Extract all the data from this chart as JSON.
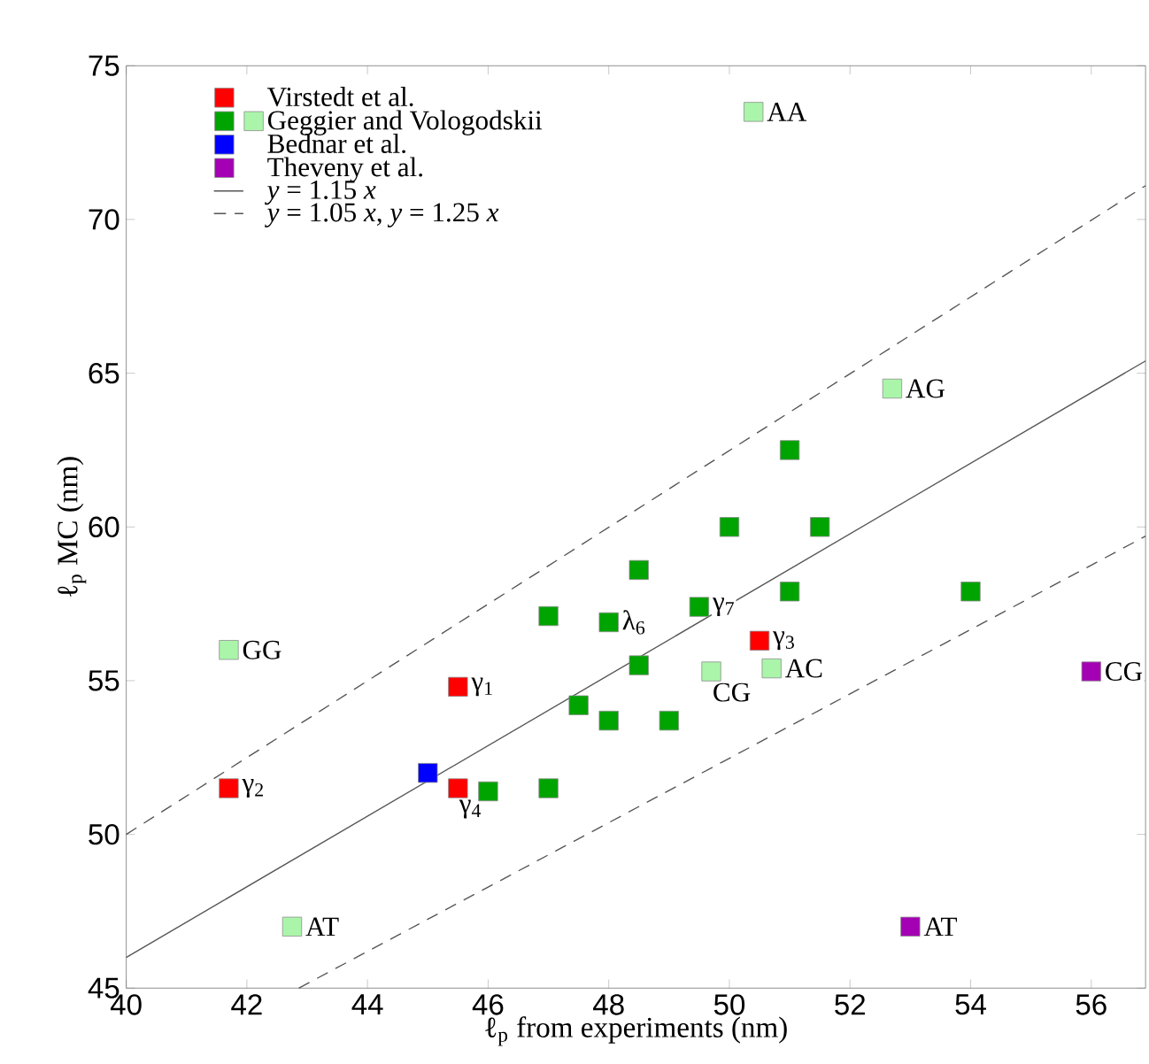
{
  "chart_data": {
    "type": "scatter",
    "xlabel": "ℓ$_{p}$ from experiments (nm)",
    "ylabel": "ℓ$_{p}$ MC (nm)",
    "xlim": [
      40,
      56.9
    ],
    "ylim": [
      45,
      75
    ],
    "xticks": [
      40,
      42,
      44,
      46,
      48,
      50,
      52,
      54,
      56
    ],
    "yticks": [
      45,
      50,
      55,
      60,
      65,
      70,
      75
    ],
    "marker": "square",
    "legend": "top left",
    "series": [
      {
        "name": "Virstedt et al.",
        "color": "#ff0000",
        "x": [
          45.5,
          41.7,
          50.5,
          45.5
        ],
        "values": [
          54.8,
          51.5,
          56.3,
          51.5
        ]
      },
      {
        "name": "Geggier and Vologodskii",
        "colors": [
          "#00a400",
          "#00a400",
          "#00a400",
          "#00a400",
          "#00a400",
          "#00a400",
          "#00a400",
          "#00a400",
          "#00a400",
          "#00a400",
          "#00a400",
          "#00a400",
          "#00a400",
          "#00a400",
          "#00a400",
          "#aaf5aa",
          "#aaf5aa",
          "#aaf5aa",
          "#aaf5aa",
          "#aaf5aa",
          "#aaf5aa"
        ],
        "x": [
          51.0,
          50.0,
          51.5,
          48.5,
          47.0,
          48.0,
          49.5,
          51.0,
          54.0,
          48.5,
          47.5,
          48.0,
          49.0,
          46.0,
          47.0,
          50.4,
          52.7,
          49.7,
          50.7,
          41.7,
          42.75
        ],
        "values": [
          62.5,
          60.0,
          60.0,
          58.6,
          57.1,
          56.9,
          57.4,
          57.9,
          57.9,
          55.5,
          54.2,
          53.7,
          53.7,
          51.4,
          51.5,
          73.5,
          64.5,
          55.3,
          55.4,
          56.0,
          47.0
        ]
      },
      {
        "name": "Bednar et al.",
        "color": "#0000ff",
        "x": [
          45.0
        ],
        "values": [
          52.0
        ]
      },
      {
        "name": "Theveny et al.",
        "color": "#a400b4",
        "x": [
          56.0,
          53.0
        ],
        "values": [
          55.3,
          47.0
        ]
      },
      {
        "name": "*y* = 1.15 *x*",
        "type": "line",
        "line_style": "solid",
        "marker": "none",
        "color": "#555555",
        "x": [
          40,
          56.9
        ],
        "values": [
          46,
          65.4
        ]
      },
      {
        "name": "*y* = 1.05 *x*, *y* = 1.25 *x*",
        "type": "line",
        "line_style": "dashed",
        "marker": "none",
        "color": "#555555",
        "x": [
          42.86,
          56.9
        ],
        "values": [
          45,
          59.7
        ]
      },
      {
        "type": "line",
        "line_style": "dashed",
        "marker": "none",
        "color": "#555555",
        "x": [
          40,
          56.9
        ],
        "values": [
          50,
          71.1
        ]
      }
    ],
    "annotations": [
      {
        "text": "γ$_{1}$",
        "x": 45.5,
        "y": 54.8
      },
      {
        "text": "γ$_{2}$",
        "x": 41.7,
        "y": 51.5
      },
      {
        "text": "γ$_{3}$",
        "x": 50.5,
        "y": 56.3
      },
      {
        "text": "γ$_{4}$",
        "x": 45.5,
        "y": 51.5
      },
      {
        "text": "λ$_{6}$",
        "x": 48.0,
        "y": 56.9
      },
      {
        "text": "γ$_{7}$",
        "x": 49.5,
        "y": 57.4
      },
      {
        "text": "AA",
        "x": 50.4,
        "y": 73.5
      },
      {
        "text": "AG",
        "x": 52.7,
        "y": 64.5
      },
      {
        "text": "CG",
        "x": 49.7,
        "y": 55.3
      },
      {
        "text": "AC",
        "x": 50.7,
        "y": 55.4
      },
      {
        "text": "GG",
        "x": 41.7,
        "y": 56.0
      },
      {
        "text": "AT",
        "x": 42.75,
        "y": 47.0
      },
      {
        "text": "CG",
        "x": 56.0,
        "y": 55.3
      },
      {
        "text": "AT",
        "x": 53.0,
        "y": 47.0
      }
    ]
  }
}
